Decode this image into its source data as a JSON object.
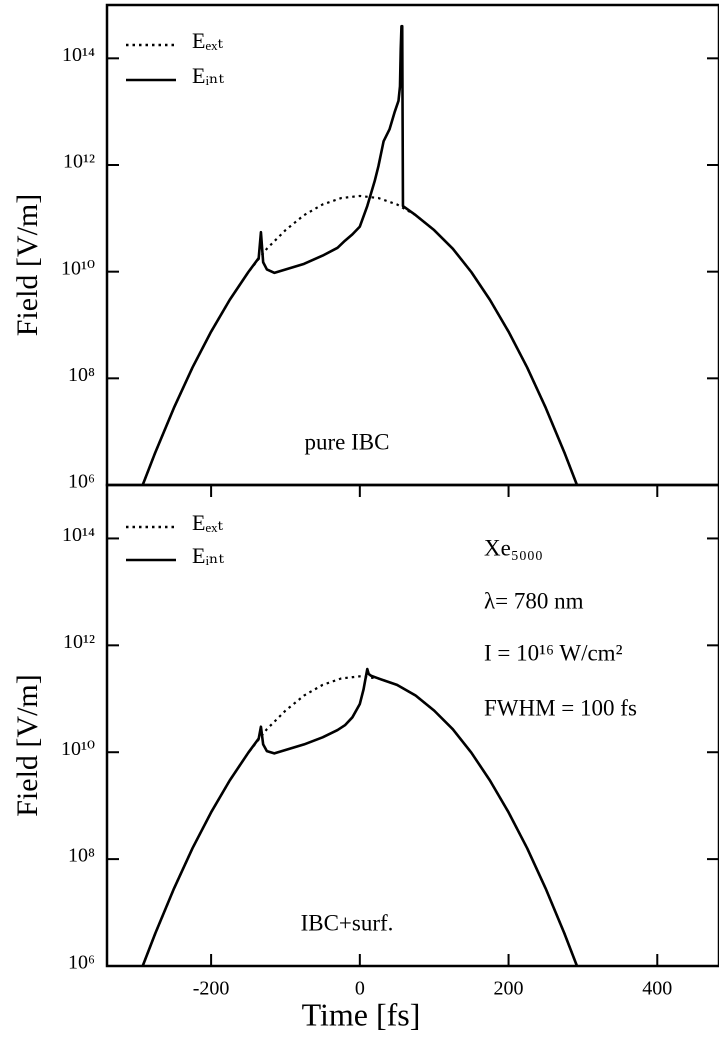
{
  "chart_data": [
    {
      "type": "line",
      "ylabel": "Field [V/m]",
      "log_y": true,
      "legend": "upper left",
      "xlim": [
        -340,
        483
      ],
      "ylim": [
        1000000.0,
        1000000000000000.0
      ],
      "yticks": [
        {
          "value": 1000000.0,
          "label": "10⁶"
        },
        {
          "value": 100000000.0,
          "label": "10⁸"
        },
        {
          "value": 10000000000.0,
          "label": "10¹⁰"
        },
        {
          "value": 1000000000000.0,
          "label": "10¹²"
        },
        {
          "value": 100000000000000.0,
          "label": "10¹⁴"
        }
      ],
      "annotations": [
        "pure IBC"
      ],
      "series": [
        {
          "name": "Eₑₓₜ",
          "color": "#000000",
          "linestyle": "dotted",
          "x": [
            -292,
            -275,
            -250,
            -225,
            -200,
            -175,
            -150,
            -125,
            -100,
            -75,
            -50,
            -25,
            0,
            25,
            50,
            75,
            100,
            125,
            150,
            175,
            200,
            225,
            250,
            275,
            292
          ],
          "values": [
            1000000.0,
            4100000.0,
            28000000.0,
            160000000.0,
            750000000.0,
            2960000000.0,
            9800000000.0,
            27000000000.0,
            60000000000.0,
            115000000000.0,
            182000000000.0,
            240000000000.0,
            263000000000.0,
            240000000000.0,
            182000000000.0,
            115000000000.0,
            60000000000.0,
            27000000000.0,
            9800000000.0,
            2960000000.0,
            750000000.0,
            160000000.0,
            28000000.0,
            4100000.0,
            1000000.0
          ]
        },
        {
          "name": "Eᵢₙₜ",
          "color": "#000000",
          "linestyle": "solid",
          "x": [
            -292,
            -275,
            -250,
            -225,
            -200,
            -175,
            -150,
            -136,
            -133,
            -130,
            -125,
            -115,
            -100,
            -75,
            -50,
            -30,
            -20,
            -10,
            0,
            10,
            20,
            25,
            32,
            40,
            47,
            52,
            54,
            55,
            56,
            57,
            58,
            75,
            100,
            125,
            150,
            175,
            200,
            225,
            250,
            275,
            292
          ],
          "values": [
            1000000.0,
            4100000.0,
            28000000.0,
            160000000.0,
            750000000.0,
            2960000000.0,
            9800000000.0,
            18000000000.0,
            55000000000.0,
            15000000000.0,
            11000000000.0,
            9500000000.0,
            11000000000.0,
            14000000000.0,
            20000000000.0,
            28000000000.0,
            38000000000.0,
            50000000000.0,
            70000000000.0,
            170000000000.0,
            500000000000.0,
            950000000000.0,
            2800000000000.0,
            4700000000000.0,
            10000000000000.0,
            16000000000000.0,
            30000000000000.0,
            150000000000000.0,
            400000000000000.0,
            400000000000000.0,
            170000000000.0,
            115000000000.0,
            60000000000.0,
            27000000000.0,
            9800000000.0,
            2960000000.0,
            750000000.0,
            160000000.0,
            28000000.0,
            4100000.0,
            1000000.0
          ]
        }
      ]
    },
    {
      "type": "line",
      "ylabel": "Field [V/m]",
      "xlabel": "Time [fs]",
      "log_y": true,
      "legend": "upper left",
      "xlim": [
        -340,
        483
      ],
      "ylim": [
        1000000.0,
        1000000000000000.0
      ],
      "xticks": [
        -200,
        0,
        200,
        400
      ],
      "yticks": [
        {
          "value": 1000000.0,
          "label": "10⁶"
        },
        {
          "value": 100000000.0,
          "label": "10⁸"
        },
        {
          "value": 10000000000.0,
          "label": "10¹⁰"
        },
        {
          "value": 1000000000000.0,
          "label": "10¹²"
        },
        {
          "value": 100000000000000.0,
          "label": "10¹⁴"
        }
      ],
      "annotations": [
        "IBC+surf.",
        "Xe₅₀₀₀",
        "λ= 780 nm",
        "I = 10¹⁶ W/cm²",
        "FWHM = 100 fs"
      ],
      "series": [
        {
          "name": "Eₑₓₜ",
          "color": "#000000",
          "linestyle": "dotted",
          "x": [
            -292,
            -275,
            -250,
            -225,
            -200,
            -175,
            -150,
            -125,
            -100,
            -75,
            -50,
            -25,
            0,
            25,
            50,
            75,
            100,
            125,
            150,
            175,
            200,
            225,
            250,
            275,
            292
          ],
          "values": [
            1000000.0,
            4100000.0,
            28000000.0,
            160000000.0,
            750000000.0,
            2960000000.0,
            9800000000.0,
            27000000000.0,
            60000000000.0,
            115000000000.0,
            182000000000.0,
            240000000000.0,
            263000000000.0,
            240000000000.0,
            182000000000.0,
            115000000000.0,
            60000000000.0,
            27000000000.0,
            9800000000.0,
            2960000000.0,
            750000000.0,
            160000000.0,
            28000000.0,
            4100000.0,
            1000000.0
          ]
        },
        {
          "name": "Eᵢₙₜ",
          "color": "#000000",
          "linestyle": "solid",
          "x": [
            -292,
            -275,
            -250,
            -225,
            -200,
            -175,
            -150,
            -136,
            -133,
            -130,
            -125,
            -115,
            -100,
            -75,
            -50,
            -30,
            -20,
            -10,
            0,
            5,
            10,
            12,
            15,
            25,
            50,
            75,
            100,
            125,
            150,
            175,
            200,
            225,
            250,
            275,
            292
          ],
          "values": [
            1000000.0,
            4100000.0,
            28000000.0,
            160000000.0,
            750000000.0,
            2960000000.0,
            9800000000.0,
            18000000000.0,
            30000000000.0,
            14000000000.0,
            10500000000.0,
            9500000000.0,
            11000000000.0,
            14000000000.0,
            19000000000.0,
            26000000000.0,
            32000000000.0,
            45000000000.0,
            80000000000.0,
            150000000000.0,
            360000000000.0,
            290000000000.0,
            270000000000.0,
            240000000000.0,
            182000000000.0,
            115000000000.0,
            60000000000.0,
            27000000000.0,
            9800000000.0,
            2960000000.0,
            750000000.0,
            160000000.0,
            28000000.0,
            4100000.0,
            1000000.0
          ]
        }
      ]
    }
  ]
}
